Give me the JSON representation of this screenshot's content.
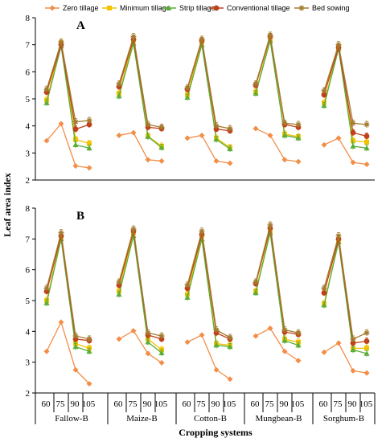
{
  "chart_data": {
    "type": "line",
    "ylabel": "Leaf area index",
    "xlabel": "Cropping systems",
    "ylim": [
      2,
      8
    ],
    "yticks": [
      2,
      3,
      4,
      5,
      6,
      7,
      8
    ],
    "x": [
      "60",
      "75",
      "90",
      "105"
    ],
    "groups": [
      "Fallow-B",
      "Maize-B",
      "Cotton-B",
      "Mungbean-B",
      "Sorghum-B"
    ],
    "legend": {
      "position": "top"
    },
    "series_styles": [
      {
        "name": "Zero tillage",
        "color": "#F28E48",
        "marker": "diamond"
      },
      {
        "name": "Minimum tillage",
        "color": "#F2C200",
        "marker": "square"
      },
      {
        "name": "Strip tillage",
        "color": "#5BAE3A",
        "marker": "triangle"
      },
      {
        "name": "Conventional tillage",
        "color": "#C0401A",
        "marker": "circle"
      },
      {
        "name": "Bed sowing",
        "color": "#A47B2F",
        "marker": "star"
      }
    ],
    "panels": [
      {
        "label": "A",
        "groups": [
          {
            "group": "Fallow-B",
            "series": [
              [
                3.45,
                4.08,
                2.52,
                2.45
              ],
              [
                4.95,
                7.05,
                3.5,
                3.35
              ],
              [
                4.85,
                6.95,
                3.3,
                3.18
              ],
              [
                5.25,
                7.0,
                3.88,
                4.05
              ],
              [
                5.35,
                7.1,
                4.15,
                4.2
              ]
            ]
          },
          {
            "group": "Maize-B",
            "series": [
              [
                3.65,
                3.75,
                2.75,
                2.7
              ],
              [
                5.2,
                7.15,
                3.62,
                3.25
              ],
              [
                5.1,
                7.05,
                3.6,
                3.2
              ],
              [
                5.45,
                7.2,
                3.95,
                3.9
              ],
              [
                5.55,
                7.3,
                4.05,
                3.95
              ]
            ]
          },
          {
            "group": "Cotton-B",
            "series": [
              [
                3.55,
                3.65,
                2.7,
                2.62
              ],
              [
                5.15,
                7.1,
                3.55,
                3.2
              ],
              [
                5.05,
                7.0,
                3.5,
                3.15
              ],
              [
                5.35,
                7.15,
                3.88,
                3.82
              ],
              [
                5.4,
                7.2,
                4.0,
                3.9
              ]
            ]
          },
          {
            "group": "Mungbean-B",
            "series": [
              [
                3.9,
                3.65,
                2.75,
                2.68
              ],
              [
                5.25,
                7.2,
                3.7,
                3.6
              ],
              [
                5.2,
                7.15,
                3.65,
                3.55
              ],
              [
                5.5,
                7.3,
                4.05,
                3.95
              ],
              [
                5.55,
                7.35,
                4.1,
                4.05
              ]
            ]
          },
          {
            "group": "Sorghum-B",
            "series": [
              [
                3.3,
                3.55,
                2.65,
                2.58
              ],
              [
                4.85,
                6.9,
                3.45,
                3.4
              ],
              [
                4.75,
                6.85,
                3.25,
                3.18
              ],
              [
                5.15,
                6.9,
                3.75,
                3.62
              ],
              [
                5.3,
                7.0,
                4.1,
                4.05
              ]
            ]
          }
        ]
      },
      {
        "label": "B",
        "groups": [
          {
            "group": "Fallow-B",
            "series": [
              [
                3.35,
                4.3,
                2.75,
                2.3
              ],
              [
                5.0,
                7.05,
                3.6,
                3.45
              ],
              [
                4.92,
                7.0,
                3.5,
                3.35
              ],
              [
                5.3,
                7.1,
                3.75,
                3.7
              ],
              [
                5.4,
                7.2,
                3.85,
                3.75
              ]
            ]
          },
          {
            "group": "Maize-B",
            "series": [
              [
                3.75,
                4.02,
                3.28,
                2.98
              ],
              [
                5.3,
                7.2,
                3.75,
                3.4
              ],
              [
                5.2,
                7.1,
                3.65,
                3.3
              ],
              [
                5.5,
                7.25,
                3.88,
                3.75
              ],
              [
                5.6,
                7.32,
                3.95,
                3.85
              ]
            ]
          },
          {
            "group": "Cotton-B",
            "series": [
              [
                3.65,
                3.88,
                2.75,
                2.45
              ],
              [
                5.2,
                7.1,
                3.6,
                3.55
              ],
              [
                5.1,
                7.0,
                3.55,
                3.5
              ],
              [
                5.4,
                7.15,
                3.95,
                3.75
              ],
              [
                5.5,
                7.25,
                4.05,
                3.8
              ]
            ]
          },
          {
            "group": "Mungbean-B",
            "series": [
              [
                3.85,
                4.1,
                3.35,
                3.05
              ],
              [
                5.3,
                7.25,
                3.75,
                3.65
              ],
              [
                5.25,
                7.2,
                3.7,
                3.55
              ],
              [
                5.55,
                7.35,
                3.98,
                3.9
              ],
              [
                5.6,
                7.45,
                4.05,
                3.95
              ]
            ]
          },
          {
            "group": "Sorghum-B",
            "series": [
              [
                3.32,
                3.62,
                2.72,
                2.65
              ],
              [
                4.9,
                6.95,
                3.45,
                3.45
              ],
              [
                4.85,
                6.9,
                3.4,
                3.28
              ],
              [
                5.25,
                7.0,
                3.62,
                3.68
              ],
              [
                5.4,
                7.1,
                3.75,
                3.95
              ]
            ]
          }
        ]
      }
    ]
  }
}
